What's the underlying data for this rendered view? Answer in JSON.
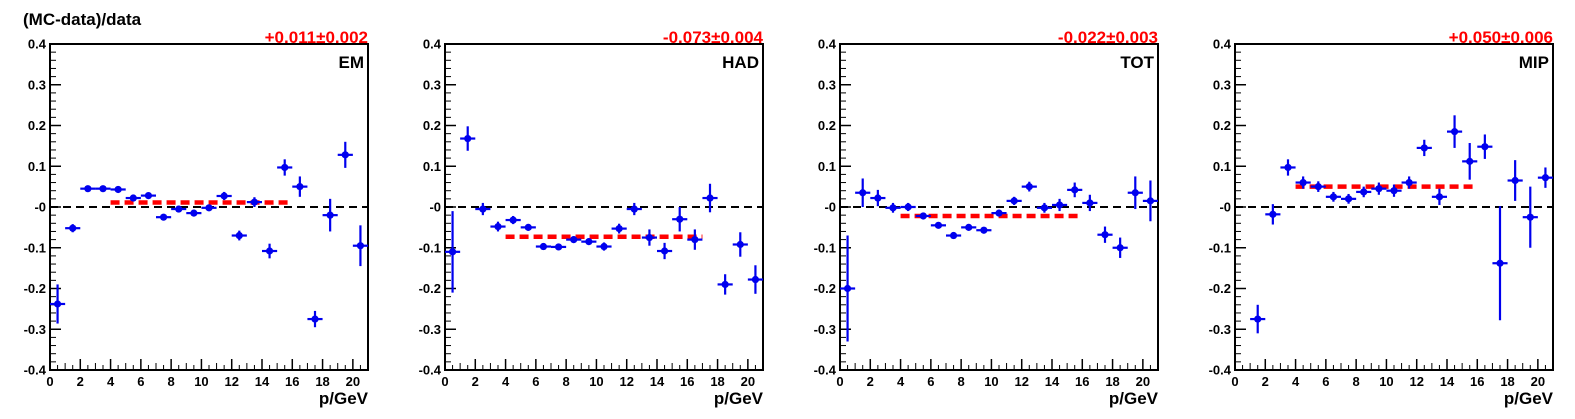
{
  "figure": {
    "ylabel": "(MC-data)/data",
    "colors": {
      "data": "#0000ee",
      "fit": "#ff0000",
      "zero_line": "#000000"
    }
  },
  "chart_data": [
    {
      "type": "scatter",
      "panel_label": "EM",
      "fit_label": "+0.011±0.002",
      "fit": {
        "value": 0.011,
        "error": 0.002,
        "x_range": [
          4,
          16
        ]
      },
      "xlabel": "p/GeV",
      "ylabel": "(MC-data)/data",
      "xlim": [
        0,
        21
      ],
      "ylim": [
        -0.4,
        0.4
      ],
      "xticks": [
        0,
        2,
        4,
        6,
        8,
        10,
        12,
        14,
        16,
        18,
        20
      ],
      "yticks": [
        "-0.4",
        "-0.3",
        "-0.2",
        "-0.1",
        "-0",
        "0.1",
        "0.2",
        "0.3",
        "0.4"
      ],
      "points": [
        {
          "x": 0.5,
          "y": -0.238,
          "yerr": 0.048
        },
        {
          "x": 1.5,
          "y": -0.052,
          "yerr": 0.01
        },
        {
          "x": 2.5,
          "y": 0.045,
          "yerr": 0.005
        },
        {
          "x": 3.5,
          "y": 0.045,
          "yerr": 0.005
        },
        {
          "x": 4.5,
          "y": 0.043,
          "yerr": 0.005
        },
        {
          "x": 5.5,
          "y": 0.022,
          "yerr": 0.008
        },
        {
          "x": 6.5,
          "y": 0.028,
          "yerr": 0.007
        },
        {
          "x": 7.5,
          "y": -0.025,
          "yerr": 0.008
        },
        {
          "x": 8.5,
          "y": -0.005,
          "yerr": 0.008
        },
        {
          "x": 9.5,
          "y": -0.015,
          "yerr": 0.008
        },
        {
          "x": 10.5,
          "y": -0.002,
          "yerr": 0.008
        },
        {
          "x": 11.5,
          "y": 0.027,
          "yerr": 0.01
        },
        {
          "x": 12.5,
          "y": -0.07,
          "yerr": 0.012
        },
        {
          "x": 13.5,
          "y": 0.012,
          "yerr": 0.012
        },
        {
          "x": 14.5,
          "y": -0.108,
          "yerr": 0.018
        },
        {
          "x": 15.5,
          "y": 0.097,
          "yerr": 0.02
        },
        {
          "x": 16.5,
          "y": 0.05,
          "yerr": 0.025
        },
        {
          "x": 17.5,
          "y": -0.275,
          "yerr": 0.02
        },
        {
          "x": 18.5,
          "y": -0.02,
          "yerr": 0.04
        },
        {
          "x": 19.5,
          "y": 0.128,
          "yerr": 0.032
        },
        {
          "x": 20.5,
          "y": -0.095,
          "yerr": 0.05
        }
      ]
    },
    {
      "type": "scatter",
      "panel_label": "HAD",
      "fit_label": "-0.073±0.004",
      "fit": {
        "value": -0.073,
        "error": 0.004,
        "x_range": [
          4,
          17
        ]
      },
      "xlabel": "p/GeV",
      "ylabel": "",
      "xlim": [
        0,
        21
      ],
      "ylim": [
        -0.4,
        0.4
      ],
      "xticks": [
        0,
        2,
        4,
        6,
        8,
        10,
        12,
        14,
        16,
        18,
        20
      ],
      "yticks": [
        "-0.4",
        "-0.3",
        "-0.2",
        "-0.1",
        "-0",
        "0.1",
        "0.2",
        "0.3",
        "0.4"
      ],
      "points": [
        {
          "x": 0.5,
          "y": -0.11,
          "yerr": 0.1
        },
        {
          "x": 1.5,
          "y": 0.168,
          "yerr": 0.03
        },
        {
          "x": 2.5,
          "y": -0.005,
          "yerr": 0.015
        },
        {
          "x": 3.5,
          "y": -0.048,
          "yerr": 0.012
        },
        {
          "x": 4.5,
          "y": -0.032,
          "yerr": 0.01
        },
        {
          "x": 5.5,
          "y": -0.05,
          "yerr": 0.008
        },
        {
          "x": 6.5,
          "y": -0.097,
          "yerr": 0.007
        },
        {
          "x": 7.5,
          "y": -0.098,
          "yerr": 0.007
        },
        {
          "x": 8.5,
          "y": -0.08,
          "yerr": 0.008
        },
        {
          "x": 9.5,
          "y": -0.085,
          "yerr": 0.008
        },
        {
          "x": 10.5,
          "y": -0.097,
          "yerr": 0.01
        },
        {
          "x": 11.5,
          "y": -0.053,
          "yerr": 0.012
        },
        {
          "x": 12.5,
          "y": -0.005,
          "yerr": 0.015
        },
        {
          "x": 13.5,
          "y": -0.075,
          "yerr": 0.02
        },
        {
          "x": 14.5,
          "y": -0.108,
          "yerr": 0.02
        },
        {
          "x": 15.5,
          "y": -0.03,
          "yerr": 0.03
        },
        {
          "x": 16.5,
          "y": -0.08,
          "yerr": 0.025
        },
        {
          "x": 17.5,
          "y": 0.022,
          "yerr": 0.035
        },
        {
          "x": 18.5,
          "y": -0.19,
          "yerr": 0.025
        },
        {
          "x": 19.5,
          "y": -0.092,
          "yerr": 0.03
        },
        {
          "x": 20.5,
          "y": -0.178,
          "yerr": 0.035
        }
      ]
    },
    {
      "type": "scatter",
      "panel_label": "TOT",
      "fit_label": "-0.022±0.003",
      "fit": {
        "value": -0.022,
        "error": 0.003,
        "x_range": [
          4,
          16
        ]
      },
      "xlabel": "p/GeV",
      "ylabel": "",
      "xlim": [
        0,
        21
      ],
      "ylim": [
        -0.4,
        0.4
      ],
      "xticks": [
        0,
        2,
        4,
        6,
        8,
        10,
        12,
        14,
        16,
        18,
        20
      ],
      "yticks": [
        "-0.4",
        "-0.3",
        "-0.2",
        "-0.1",
        "-0",
        "0.1",
        "0.2",
        "0.3",
        "0.4"
      ],
      "points": [
        {
          "x": 0.5,
          "y": -0.2,
          "yerr": 0.13
        },
        {
          "x": 1.5,
          "y": 0.035,
          "yerr": 0.035
        },
        {
          "x": 2.5,
          "y": 0.022,
          "yerr": 0.02
        },
        {
          "x": 3.5,
          "y": -0.002,
          "yerr": 0.012
        },
        {
          "x": 4.5,
          "y": 0.0,
          "yerr": 0.01
        },
        {
          "x": 5.5,
          "y": -0.022,
          "yerr": 0.008
        },
        {
          "x": 6.5,
          "y": -0.045,
          "yerr": 0.007
        },
        {
          "x": 7.5,
          "y": -0.07,
          "yerr": 0.007
        },
        {
          "x": 8.5,
          "y": -0.05,
          "yerr": 0.007
        },
        {
          "x": 9.5,
          "y": -0.057,
          "yerr": 0.007
        },
        {
          "x": 10.5,
          "y": -0.015,
          "yerr": 0.008
        },
        {
          "x": 11.5,
          "y": 0.015,
          "yerr": 0.01
        },
        {
          "x": 12.5,
          "y": 0.05,
          "yerr": 0.012
        },
        {
          "x": 13.5,
          "y": -0.002,
          "yerr": 0.012
        },
        {
          "x": 14.5,
          "y": 0.005,
          "yerr": 0.015
        },
        {
          "x": 15.5,
          "y": 0.042,
          "yerr": 0.018
        },
        {
          "x": 16.5,
          "y": 0.01,
          "yerr": 0.02
        },
        {
          "x": 17.5,
          "y": -0.068,
          "yerr": 0.02
        },
        {
          "x": 18.5,
          "y": -0.1,
          "yerr": 0.025
        },
        {
          "x": 19.5,
          "y": 0.035,
          "yerr": 0.04
        },
        {
          "x": 20.5,
          "y": 0.015,
          "yerr": 0.05
        }
      ]
    },
    {
      "type": "scatter",
      "panel_label": "MIP",
      "fit_label": "+0.050±0.006",
      "fit": {
        "value": 0.05,
        "error": 0.006,
        "x_range": [
          4,
          16
        ]
      },
      "xlabel": "p/GeV",
      "ylabel": "",
      "xlim": [
        0,
        21
      ],
      "ylim": [
        -0.4,
        0.4
      ],
      "xticks": [
        0,
        2,
        4,
        6,
        8,
        10,
        12,
        14,
        16,
        18,
        20
      ],
      "yticks": [
        "-0.4",
        "-0.3",
        "-0.2",
        "-0.1",
        "-0",
        "0.1",
        "0.2",
        "0.3",
        "0.4"
      ],
      "points": [
        {
          "x": 1.5,
          "y": -0.275,
          "yerr": 0.035
        },
        {
          "x": 2.5,
          "y": -0.018,
          "yerr": 0.025
        },
        {
          "x": 3.5,
          "y": 0.097,
          "yerr": 0.02
        },
        {
          "x": 4.5,
          "y": 0.06,
          "yerr": 0.015
        },
        {
          "x": 5.5,
          "y": 0.05,
          "yerr": 0.013
        },
        {
          "x": 6.5,
          "y": 0.025,
          "yerr": 0.012
        },
        {
          "x": 7.5,
          "y": 0.02,
          "yerr": 0.012
        },
        {
          "x": 8.5,
          "y": 0.037,
          "yerr": 0.013
        },
        {
          "x": 9.5,
          "y": 0.045,
          "yerr": 0.015
        },
        {
          "x": 10.5,
          "y": 0.04,
          "yerr": 0.015
        },
        {
          "x": 11.5,
          "y": 0.06,
          "yerr": 0.015
        },
        {
          "x": 12.5,
          "y": 0.145,
          "yerr": 0.02
        },
        {
          "x": 13.5,
          "y": 0.025,
          "yerr": 0.02
        },
        {
          "x": 14.5,
          "y": 0.185,
          "yerr": 0.04
        },
        {
          "x": 15.5,
          "y": 0.112,
          "yerr": 0.045
        },
        {
          "x": 16.5,
          "y": 0.148,
          "yerr": 0.03
        },
        {
          "x": 17.5,
          "y": -0.138,
          "yerr": 0.14
        },
        {
          "x": 18.5,
          "y": 0.065,
          "yerr": 0.05
        },
        {
          "x": 19.5,
          "y": -0.025,
          "yerr": 0.075
        },
        {
          "x": 20.5,
          "y": 0.072,
          "yerr": 0.025
        }
      ]
    }
  ]
}
